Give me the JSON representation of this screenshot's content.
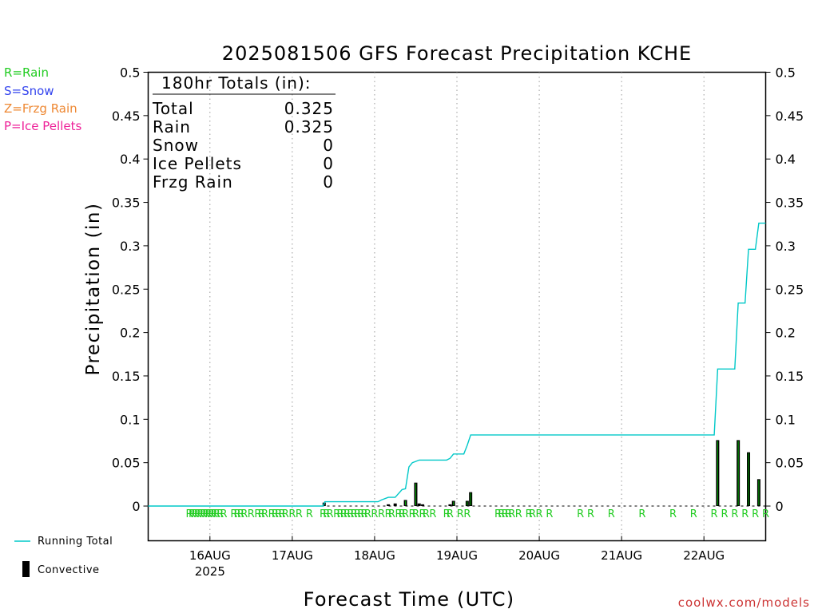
{
  "title": "2025081506 GFS Forecast Precipitation KCHE",
  "ylabel": "Precipitation (in)",
  "xlabel": "Forecast Time (UTC)",
  "credit": "coolwx.com/models",
  "precip_legend": [
    {
      "text": "R=Rain",
      "color": "#22cc22"
    },
    {
      "text": "S=Snow",
      "color": "#3344ee"
    },
    {
      "text": "Z=Frzg Rain",
      "color": "#ee8833"
    },
    {
      "text": "P=Ice Pellets",
      "color": "#ee2299"
    }
  ],
  "series_legend": {
    "line": "Running Total",
    "bar": "Convective"
  },
  "totals": {
    "header": "180hr Totals (in):",
    "rows": [
      {
        "label": "Total",
        "value": "0.325"
      },
      {
        "label": "Rain",
        "value": "0.325"
      },
      {
        "label": "Snow",
        "value": "0"
      },
      {
        "label": "Ice Pellets",
        "value": "0"
      },
      {
        "label": "Frzg Rain",
        "value": "0"
      }
    ]
  },
  "colors": {
    "line": "#00c8c8",
    "bar": "#000000",
    "bar_core": "#00aa00",
    "rain_marker": "#22cc22",
    "grid": "#999999"
  },
  "chart_data": {
    "type": "line",
    "x_unit": "forecast hours from 2025-08-15 06 UTC",
    "xlim": [
      0,
      180
    ],
    "ylim": [
      -0.04,
      0.5
    ],
    "y_ticks": [
      0,
      0.05,
      0.1,
      0.15,
      0.2,
      0.25,
      0.3,
      0.35,
      0.4,
      0.45,
      0.5
    ],
    "y_tick_labels": [
      "0",
      "0.05",
      "0.1",
      "0.15",
      "0.2",
      "0.25",
      "0.3",
      "0.35",
      "0.4",
      "0.45",
      "0.5"
    ],
    "x_ticks": [
      {
        "x": 18,
        "label": "16AUG",
        "sub": "2025"
      },
      {
        "x": 42,
        "label": "17AUG",
        "sub": ""
      },
      {
        "x": 66,
        "label": "18AUG",
        "sub": ""
      },
      {
        "x": 90,
        "label": "19AUG",
        "sub": ""
      },
      {
        "x": 114,
        "label": "20AUG",
        "sub": ""
      },
      {
        "x": 138,
        "label": "21AUG",
        "sub": ""
      },
      {
        "x": 162,
        "label": "22AUG",
        "sub": ""
      }
    ],
    "running_total": [
      [
        0,
        0
      ],
      [
        51,
        0
      ],
      [
        51.5,
        0.005
      ],
      [
        67,
        0.005
      ],
      [
        68,
        0.007
      ],
      [
        70,
        0.01
      ],
      [
        72,
        0.01
      ],
      [
        74,
        0.019
      ],
      [
        75,
        0.02
      ],
      [
        76,
        0.045
      ],
      [
        77,
        0.05
      ],
      [
        79,
        0.053
      ],
      [
        87,
        0.053
      ],
      [
        88,
        0.055
      ],
      [
        89,
        0.06
      ],
      [
        92,
        0.06
      ],
      [
        93,
        0.07
      ],
      [
        94,
        0.082
      ],
      [
        165,
        0.082
      ],
      [
        166,
        0.158
      ],
      [
        171,
        0.158
      ],
      [
        172,
        0.234
      ],
      [
        174,
        0.234
      ],
      [
        175,
        0.296
      ],
      [
        177,
        0.296
      ],
      [
        178,
        0.326
      ],
      [
        180,
        0.326
      ]
    ],
    "convective_bars": [
      [
        51.3,
        0.004
      ],
      [
        70,
        0.002
      ],
      [
        72,
        0.003
      ],
      [
        75,
        0.007
      ],
      [
        78,
        0.027
      ],
      [
        79,
        0.003
      ],
      [
        80,
        0.002
      ],
      [
        88,
        0.002
      ],
      [
        89,
        0.006
      ],
      [
        93,
        0.006
      ],
      [
        94,
        0.016
      ],
      [
        166,
        0.076
      ],
      [
        172,
        0.076
      ],
      [
        175,
        0.062
      ],
      [
        178,
        0.031
      ]
    ],
    "rain_markers": [
      12,
      12.8,
      13.6,
      14.4,
      15.2,
      16,
      16.8,
      17.6,
      18.4,
      19.2,
      20,
      21,
      22,
      25,
      26,
      27,
      28,
      30,
      32,
      33,
      34,
      36,
      37,
      38,
      39,
      40,
      42,
      44,
      47,
      51,
      52,
      53,
      55,
      56,
      57,
      58,
      59,
      60,
      61,
      62,
      63,
      64,
      66,
      68,
      70,
      71,
      73,
      74,
      75,
      77,
      78,
      80,
      81,
      83,
      87,
      88,
      91,
      93,
      102,
      103,
      104,
      105,
      106,
      108,
      111,
      112,
      114,
      117,
      126,
      129,
      135,
      144,
      153,
      159,
      165,
      168,
      171,
      174,
      177,
      180
    ],
    "rain_marker_text": "R"
  }
}
